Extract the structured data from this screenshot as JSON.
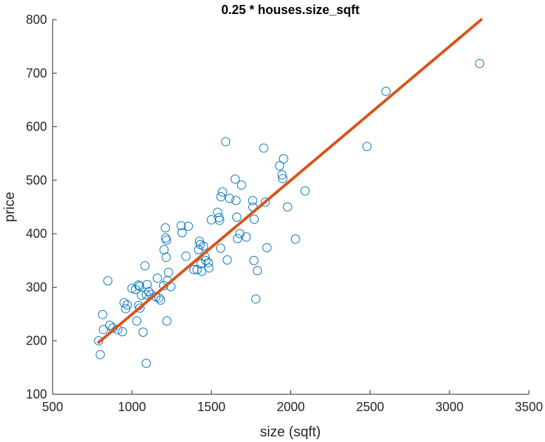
{
  "chart_data": {
    "type": "scatter",
    "title": "0.25 * houses.size_sqft",
    "xlabel": "size (sqft)",
    "ylabel": "price",
    "xlim": [
      500,
      3500
    ],
    "ylim": [
      100,
      800
    ],
    "xticks": [
      "500",
      "1000",
      "1500",
      "2000",
      "2500",
      "3000",
      "3500"
    ],
    "yticks": [
      "100",
      "200",
      "300",
      "400",
      "500",
      "600",
      "700",
      "800"
    ],
    "grid": false,
    "legend": "none",
    "colors": {
      "points": "#0072BD",
      "line": "#D95319",
      "axis": "#262626"
    },
    "series": [
      {
        "type": "scatter",
        "points": [
          [
            790,
            200
          ],
          [
            800,
            174
          ],
          [
            815,
            249
          ],
          [
            820,
            221
          ],
          [
            848,
            312
          ],
          [
            860,
            229
          ],
          [
            880,
            224
          ],
          [
            910,
            221
          ],
          [
            940,
            217
          ],
          [
            950,
            271
          ],
          [
            960,
            260
          ],
          [
            970,
            267
          ],
          [
            1000,
            298
          ],
          [
            1022,
            296
          ],
          [
            1030,
            237
          ],
          [
            1040,
            304
          ],
          [
            1042,
            266
          ],
          [
            1048,
            302
          ],
          [
            1050,
            261
          ],
          [
            1060,
            285
          ],
          [
            1070,
            216
          ],
          [
            1082,
            340
          ],
          [
            1090,
            158
          ],
          [
            1090,
            286
          ],
          [
            1095,
            305
          ],
          [
            1105,
            292
          ],
          [
            1120,
            287
          ],
          [
            1150,
            282
          ],
          [
            1160,
            317
          ],
          [
            1170,
            280
          ],
          [
            1180,
            276
          ],
          [
            1200,
            303
          ],
          [
            1202,
            370
          ],
          [
            1210,
            411
          ],
          [
            1212,
            392
          ],
          [
            1215,
            356
          ],
          [
            1218,
            388
          ],
          [
            1220,
            237
          ],
          [
            1222,
            312
          ],
          [
            1230,
            328
          ],
          [
            1245,
            301
          ],
          [
            1310,
            415
          ],
          [
            1315,
            402
          ],
          [
            1340,
            358
          ],
          [
            1355,
            414
          ],
          [
            1390,
            333
          ],
          [
            1410,
            333
          ],
          [
            1420,
            370
          ],
          [
            1425,
            386
          ],
          [
            1430,
            380
          ],
          [
            1435,
            344
          ],
          [
            1440,
            330
          ],
          [
            1450,
            377
          ],
          [
            1460,
            357
          ],
          [
            1465,
            350
          ],
          [
            1480,
            346
          ],
          [
            1485,
            336
          ],
          [
            1500,
            426
          ],
          [
            1540,
            440
          ],
          [
            1548,
            430
          ],
          [
            1552,
            425
          ],
          [
            1558,
            373
          ],
          [
            1560,
            469
          ],
          [
            1570,
            478
          ],
          [
            1590,
            572
          ],
          [
            1600,
            351
          ],
          [
            1615,
            466
          ],
          [
            1650,
            502
          ],
          [
            1655,
            462
          ],
          [
            1660,
            431
          ],
          [
            1665,
            391
          ],
          [
            1680,
            400
          ],
          [
            1690,
            491
          ],
          [
            1720,
            394
          ],
          [
            1760,
            462
          ],
          [
            1762,
            450
          ],
          [
            1768,
            350
          ],
          [
            1770,
            427
          ],
          [
            1780,
            278
          ],
          [
            1790,
            331
          ],
          [
            1830,
            560
          ],
          [
            1840,
            459
          ],
          [
            1850,
            374
          ],
          [
            1930,
            527
          ],
          [
            1945,
            510
          ],
          [
            1950,
            503
          ],
          [
            1955,
            540
          ],
          [
            1980,
            450
          ],
          [
            2030,
            390
          ],
          [
            2090,
            480
          ],
          [
            2480,
            563
          ],
          [
            2600,
            666
          ],
          [
            3190,
            718
          ]
        ]
      },
      {
        "type": "line",
        "points": [
          [
            790,
            197
          ],
          [
            3200,
            800
          ]
        ]
      }
    ]
  }
}
